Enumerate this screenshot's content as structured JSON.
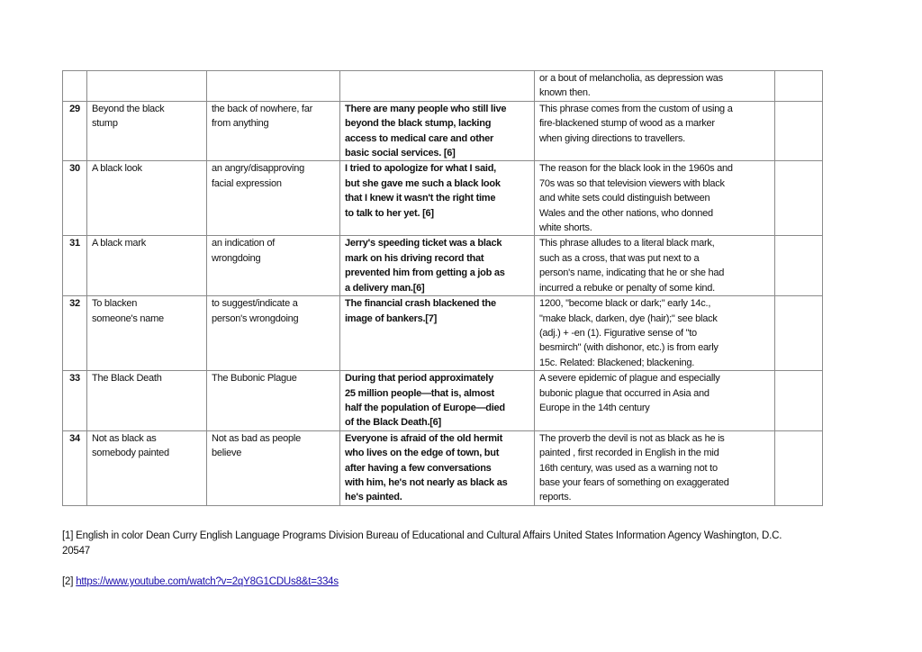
{
  "table": {
    "rows": [
      {
        "num": "",
        "idiom": [],
        "meaning": [],
        "example": [],
        "origin": [
          "or a bout of melancholia, as depression was",
          "known then."
        ]
      },
      {
        "num": "29",
        "idiom": [
          "Beyond the black",
          "stump"
        ],
        "meaning": [
          "the back of nowhere, far",
          "from anything"
        ],
        "example": [
          "There are many people who still live",
          "beyond the black stump, lacking",
          "access to medical care and other",
          "basic social services. [6]"
        ],
        "origin": [
          "This phrase comes from the custom of using a",
          "fire-blackened stump of wood as a marker",
          "when giving directions to travellers."
        ]
      },
      {
        "num": "30",
        "idiom": [
          "A black look"
        ],
        "meaning": [
          "an angry/disapproving",
          "facial expression"
        ],
        "example": [
          "I tried to apologize for what I said,",
          "but she gave me such a black look",
          "that I knew it wasn't the right time",
          "to talk to her yet. [6]"
        ],
        "origin": [
          "The reason for the black look in the 1960s and",
          "70s was so that television viewers with black",
          "and white sets could distinguish between",
          "Wales and the other nations, who donned",
          "white shorts."
        ]
      },
      {
        "num": "31",
        "idiom": [
          "A black mark"
        ],
        "meaning": [
          "an indication of",
          "wrongdoing"
        ],
        "example": [
          "Jerry's speeding ticket was a black",
          "mark on his driving record that",
          "prevented him from getting a job as",
          "a delivery man.[6]"
        ],
        "origin": [
          "This phrase alludes to a literal black mark,",
          "such as a cross, that was put next to a",
          "person's name, indicating that he or she had",
          "incurred a rebuke or penalty of some kind."
        ]
      },
      {
        "num": "32",
        "idiom": [
          "To blacken",
          "someone's name"
        ],
        "meaning": [
          "to suggest/indicate a",
          "person's wrongdoing"
        ],
        "example": [
          "The financial crash blackened the",
          "image of bankers.[7]"
        ],
        "origin": [
          "1200, \"become black or dark;\" early 14c.,",
          "\"make black, darken, dye (hair);\" see black",
          "(adj.) + -en (1). Figurative sense of \"to",
          "besmirch\" (with dishonor, etc.) is from early",
          "15c. Related: Blackened; blackening."
        ]
      },
      {
        "num": "33",
        "idiom": [
          "The Black Death"
        ],
        "meaning": [
          "The Bubonic Plague"
        ],
        "example": [
          "During that period approximately",
          "25 million people—that is, almost",
          "half the population of Europe—died",
          "of the Black Death.[6]"
        ],
        "origin": [
          "A severe epidemic of plague and especially",
          "bubonic plague that occurred in Asia and",
          "Europe in the 14th century"
        ]
      },
      {
        "num": "34",
        "idiom": [
          "Not as black as",
          "somebody painted"
        ],
        "meaning": [
          "Not as bad as people",
          "believe"
        ],
        "example": [
          "Everyone is afraid of the old hermit",
          "who lives on the edge of town, but",
          "after having a few conversations",
          "with him, he's not nearly as black as",
          "he's painted."
        ],
        "origin": [
          "The proverb the devil is not as black as he is",
          "painted , first recorded in English in the mid",
          "16th century, was used as a warning not to",
          "base your fears of something on exaggerated",
          "reports."
        ]
      }
    ]
  },
  "footnotes": {
    "fn1_lines": [
      "[1] English in color Dean Curry  English Language Programs Division Bureau of Educational and Cultural Affairs United States Information Agency Washington, D.C.",
      "20547"
    ],
    "fn2_marker": "[2] ",
    "fn2_link": "https://www.youtube.com/watch?v=2qY8G1CDUs8&t=334s"
  }
}
